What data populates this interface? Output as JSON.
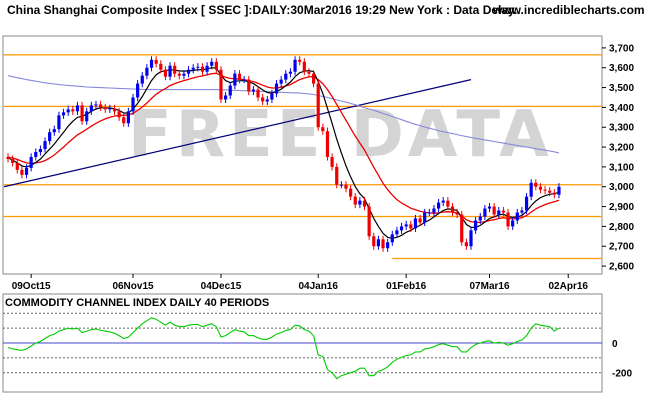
{
  "header": {
    "title": "China Shanghai Composite Index [ SSEC ]:DAILY:30Mar2016 19:29 New York : Data Delay..",
    "site": "www.incrediblecharts.com"
  },
  "watermark": "FREE DATA",
  "indicator": {
    "title": "COMMODITY CHANNEL INDEX DAILY 40 PERIODS",
    "yticks": [
      0,
      -200
    ],
    "ytick_labels": [
      "0",
      "-200"
    ]
  },
  "colors": {
    "up": "#0000ee",
    "down": "#ee0000",
    "ma_short": "#000000",
    "ma_mid": "#ee0000",
    "ma_long": "#8888dd",
    "trendline": "#00007a",
    "hlines": "#ff9900",
    "cci": "#00cc00"
  },
  "chart_data": [
    {
      "type": "candlestick",
      "title": "China Shanghai Composite Index [ SSEC ]:DAILY:30Mar2016 19:29 New York : Data Delay..",
      "xlabel": "",
      "ylabel": "",
      "x_tick_labels": [
        "09Oct15",
        "06Nov15",
        "04Dec15",
        "04Jan16",
        "01Feb16",
        "07Mar16",
        "02Apr16"
      ],
      "yticks": [
        2600,
        2700,
        2800,
        2900,
        3000,
        3100,
        3200,
        3300,
        3400,
        3500,
        3600,
        3700
      ],
      "ytick_labels": [
        "2,600",
        "2,700",
        "2,800",
        "2,900",
        "3,000",
        "3,100",
        "3,200",
        "3,300",
        "3,400",
        "3,500",
        "3,600",
        "3,700"
      ],
      "ylim": [
        2560,
        3760
      ],
      "grid": false,
      "horizontal_levels": [
        3665,
        3405,
        3010,
        2850,
        2638
      ],
      "trendline": {
        "from": [
          0,
          3000
        ],
        "to": [
          100,
          3540
        ]
      },
      "close": [
        3140,
        3120,
        3085,
        3060,
        3095,
        3150,
        3175,
        3190,
        3230,
        3275,
        3290,
        3360,
        3375,
        3390,
        3380,
        3410,
        3330,
        3380,
        3410,
        3415,
        3400,
        3390,
        3395,
        3380,
        3350,
        3320,
        3380,
        3450,
        3520,
        3560,
        3600,
        3640,
        3620,
        3590,
        3555,
        3610,
        3570,
        3560,
        3570,
        3590,
        3600,
        3605,
        3580,
        3610,
        3630,
        3590,
        3440,
        3460,
        3510,
        3570,
        3540,
        3540,
        3480,
        3490,
        3450,
        3430,
        3440,
        3470,
        3520,
        3540,
        3570,
        3580,
        3640,
        3630,
        3580,
        3570,
        3520,
        3300,
        3280,
        3150,
        3100,
        3010,
        3010,
        2990,
        2950,
        2910,
        2930,
        2900,
        2750,
        2700,
        2735,
        2690,
        2720,
        2760,
        2780,
        2800,
        2810,
        2790,
        2840,
        2820,
        2870,
        2870,
        2890,
        2920,
        2930,
        2900,
        2870,
        2860,
        2720,
        2700,
        2780,
        2830,
        2850,
        2890,
        2900,
        2860,
        2880,
        2870,
        2800,
        2830,
        2870,
        2880,
        2950,
        3020,
        3000,
        2985,
        2980,
        2970,
        2960,
        3000
      ],
      "ma_short": [
        3145,
        3135,
        3120,
        3105,
        3100,
        3108,
        3122,
        3140,
        3165,
        3190,
        3215,
        3245,
        3275,
        3305,
        3330,
        3350,
        3355,
        3365,
        3380,
        3392,
        3398,
        3398,
        3397,
        3393,
        3385,
        3372,
        3372,
        3392,
        3420,
        3455,
        3495,
        3535,
        3565,
        3580,
        3585,
        3590,
        3588,
        3584,
        3583,
        3584,
        3586,
        3590,
        3590,
        3594,
        3600,
        3598,
        3562,
        3535,
        3525,
        3532,
        3534,
        3535,
        3528,
        3520,
        3505,
        3488,
        3475,
        3472,
        3480,
        3492,
        3510,
        3528,
        3555,
        3575,
        3582,
        3586,
        3580,
        3530,
        3470,
        3395,
        3320,
        3240,
        3170,
        3105,
        3050,
        3000,
        2965,
        2940,
        2890,
        2840,
        2800,
        2765,
        2745,
        2740,
        2745,
        2755,
        2770,
        2780,
        2795,
        2805,
        2820,
        2832,
        2848,
        2865,
        2880,
        2888,
        2886,
        2880,
        2845,
        2810,
        2795,
        2795,
        2805,
        2822,
        2840,
        2848,
        2858,
        2862,
        2850,
        2845,
        2848,
        2855,
        2875,
        2905,
        2928,
        2945,
        2955,
        2962,
        2965,
        2972
      ],
      "ma_mid": [
        3150,
        3145,
        3138,
        3128,
        3120,
        3118,
        3120,
        3124,
        3132,
        3145,
        3160,
        3180,
        3200,
        3222,
        3242,
        3262,
        3275,
        3290,
        3305,
        3320,
        3332,
        3342,
        3350,
        3356,
        3360,
        3360,
        3362,
        3370,
        3385,
        3402,
        3422,
        3445,
        3466,
        3482,
        3495,
        3510,
        3520,
        3528,
        3535,
        3542,
        3548,
        3555,
        3559,
        3564,
        3570,
        3572,
        3562,
        3552,
        3546,
        3544,
        3542,
        3540,
        3535,
        3530,
        3522,
        3512,
        3503,
        3498,
        3498,
        3502,
        3508,
        3515,
        3528,
        3540,
        3548,
        3554,
        3556,
        3540,
        3520,
        3490,
        3455,
        3415,
        3375,
        3335,
        3295,
        3255,
        3220,
        3185,
        3142,
        3098,
        3058,
        3018,
        2985,
        2958,
        2935,
        2918,
        2905,
        2892,
        2884,
        2876,
        2872,
        2868,
        2866,
        2868,
        2872,
        2874,
        2872,
        2868,
        2852,
        2834,
        2824,
        2820,
        2820,
        2824,
        2830,
        2834,
        2840,
        2844,
        2840,
        2838,
        2840,
        2844,
        2855,
        2872,
        2888,
        2900,
        2910,
        2918,
        2924,
        2932
      ],
      "ma_long": [
        3560,
        3555,
        3550,
        3545,
        3540,
        3536,
        3532,
        3528,
        3524,
        3521,
        3518,
        3515,
        3513,
        3511,
        3509,
        3507,
        3505,
        3503,
        3502,
        3501,
        3500,
        3499,
        3498,
        3497,
        3496,
        3495,
        3494,
        3493,
        3492,
        3491,
        3490,
        3490,
        3490,
        3490,
        3490,
        3490,
        3490,
        3490,
        3490,
        3490,
        3490,
        3490,
        3490,
        3490,
        3490,
        3490,
        3489,
        3488,
        3487,
        3486,
        3485,
        3484,
        3483,
        3482,
        3481,
        3480,
        3479,
        3478,
        3477,
        3476,
        3475,
        3474,
        3473,
        3472,
        3470,
        3468,
        3465,
        3460,
        3455,
        3450,
        3444,
        3438,
        3432,
        3426,
        3420,
        3413,
        3406,
        3399,
        3392,
        3385,
        3378,
        3370,
        3362,
        3354,
        3346,
        3338,
        3330,
        3322,
        3315,
        3308,
        3301,
        3295,
        3289,
        3283,
        3278,
        3273,
        3268,
        3263,
        3258,
        3253,
        3248,
        3244,
        3240,
        3236,
        3232,
        3228,
        3224,
        3220,
        3216,
        3212,
        3208,
        3204,
        3200,
        3196,
        3192,
        3188,
        3184,
        3180,
        3176,
        3170
      ]
    },
    {
      "type": "line",
      "title": "COMMODITY CHANNEL INDEX DAILY 40 PERIODS",
      "xlabel": "",
      "ylabel": "",
      "yticks": [
        0,
        -200
      ],
      "ytick_labels": [
        "0",
        "-200"
      ],
      "ylim": [
        -330,
        330
      ],
      "reference_levels": [
        -200,
        -100,
        0,
        100,
        200
      ],
      "series": [
        {
          "values": [
            -30,
            -40,
            -45,
            -50,
            -40,
            -20,
            0,
            10,
            30,
            50,
            60,
            80,
            90,
            100,
            95,
            100,
            70,
            80,
            90,
            95,
            85,
            80,
            75,
            65,
            50,
            30,
            40,
            70,
            100,
            130,
            150,
            170,
            160,
            140,
            120,
            140,
            120,
            110,
            110,
            120,
            125,
            125,
            110,
            120,
            130,
            110,
            40,
            50,
            70,
            90,
            80,
            75,
            50,
            50,
            35,
            25,
            25,
            40,
            60,
            70,
            85,
            90,
            120,
            115,
            90,
            80,
            50,
            -80,
            -90,
            -180,
            -200,
            -240,
            -220,
            -210,
            -200,
            -190,
            -170,
            -170,
            -220,
            -220,
            -190,
            -180,
            -160,
            -130,
            -110,
            -95,
            -85,
            -80,
            -60,
            -60,
            -40,
            -35,
            -25,
            -10,
            -5,
            -15,
            -25,
            -25,
            -60,
            -60,
            -30,
            -10,
            0,
            10,
            15,
            0,
            5,
            0,
            -15,
            -5,
            10,
            20,
            50,
            100,
            130,
            120,
            115,
            110,
            80,
            100
          ]
        }
      ]
    }
  ]
}
